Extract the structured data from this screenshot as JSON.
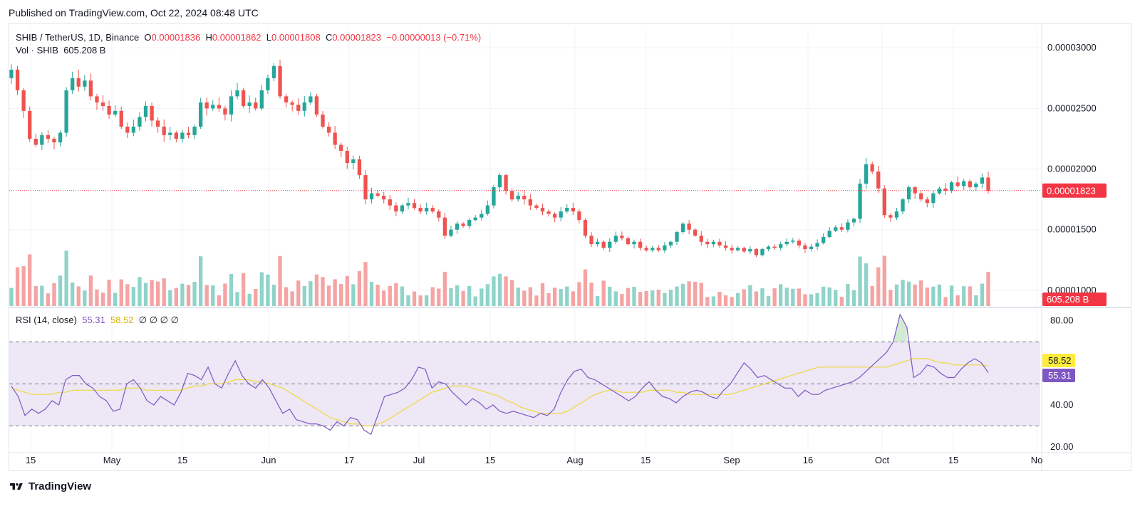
{
  "header": {
    "published": "Published on TradingView.com, Oct 22, 2024 08:48 UTC"
  },
  "legend": {
    "symbol": "SHIB / TetherUS, 1D, Binance",
    "open_label": "O",
    "open": "0.00001836",
    "high_label": "H",
    "high": "0.00001862",
    "low_label": "L",
    "low": "0.00001808",
    "close_label": "C",
    "close": "0.00001823",
    "change": "−0.00000013 (−0.71%)",
    "vol_label": "Vol · SHIB",
    "vol_value": "605.208 B"
  },
  "rsi_legend": {
    "label": "RSI (14, close)",
    "rsi": "55.31",
    "ma": "58.52",
    "extras": "∅  ∅  ∅  ∅"
  },
  "footer": {
    "brand": "TradingView"
  },
  "colors": {
    "up": "#26a69a",
    "down": "#ef5350",
    "vol_up": "#8fd3c9",
    "vol_down": "#f5a3a3",
    "rsi": "#7e57c2",
    "rsi_ma": "#f0d83a",
    "rsi_band": "#ede7f6",
    "price_tag": "#f23645",
    "rsi_tag": "#7e57c2",
    "rsi_ma_tag": "#ffeb3b"
  },
  "chart_data": [
    {
      "type": "candlestick",
      "title": "SHIB / TetherUS, 1D, Binance",
      "x_ticks": [
        "15",
        "May",
        "15",
        "Jun",
        "17",
        "Jul",
        "15",
        "Aug",
        "15",
        "Sep",
        "16",
        "Oct",
        "15",
        "No"
      ],
      "y_ticks": [
        "0.00003000",
        "0.00002500",
        "0.00002000",
        "0.00001500",
        "0.00001000"
      ],
      "ylim": [
        8.7e-06,
        3.16e-05
      ],
      "last_price_label": "0.00001823",
      "last_price": 1.823e-05,
      "volume_label": "605.208 B",
      "close_series": [
        28.2,
        26.5,
        24.8,
        22.5,
        22.0,
        22.8,
        22.5,
        22.2,
        23.0,
        26.5,
        27.5,
        26.8,
        27.3,
        26.0,
        25.5,
        25.2,
        24.5,
        24.8,
        23.5,
        23.0,
        23.5,
        24.3,
        25.2,
        24.0,
        23.5,
        22.8,
        23.0,
        22.5,
        23.0,
        22.8,
        23.5,
        25.5,
        25.0,
        25.3,
        25.0,
        24.5,
        26.0,
        26.5,
        25.2,
        25.5,
        25.0,
        26.5,
        27.5,
        28.5,
        26.0,
        25.5,
        25.3,
        24.8,
        25.5,
        26.0,
        24.5,
        23.5,
        23.0,
        22.0,
        21.5,
        20.5,
        20.8,
        19.5,
        17.5,
        18.0,
        17.8,
        17.5,
        17.0,
        16.5,
        17.0,
        17.2,
        16.8,
        16.5,
        16.8,
        16.5,
        16.0,
        14.5,
        15.0,
        15.5,
        15.3,
        15.8,
        16.0,
        16.3,
        17.0,
        18.5,
        19.5,
        18.2,
        17.5,
        17.8,
        17.5,
        17.0,
        16.8,
        16.5,
        16.3,
        16.0,
        16.5,
        16.8,
        16.5,
        15.8,
        14.5,
        13.8,
        14.0,
        13.5,
        14.0,
        14.5,
        14.3,
        13.8,
        14.0,
        13.5,
        13.3,
        13.5,
        13.3,
        13.7,
        14.0,
        14.8,
        15.5,
        15.0,
        14.5,
        14.0,
        13.8,
        14.0,
        13.7,
        13.5,
        13.3,
        13.5,
        13.2,
        13.4,
        12.9,
        13.4,
        13.6,
        13.5,
        13.8,
        14.0,
        14.1,
        13.7,
        13.4,
        13.6,
        13.9,
        14.4,
        14.9,
        15.2,
        15.0,
        15.6,
        15.9,
        18.8,
        20.4,
        19.8,
        18.4,
        16.2,
        16.0,
        16.5,
        17.5,
        18.5,
        18.0,
        17.5,
        17.2,
        18.0,
        18.4,
        18.2,
        18.9,
        18.6,
        19.0,
        18.5,
        18.8,
        19.3,
        18.2
      ]
    },
    {
      "type": "line",
      "title": "RSI (14, close)",
      "y_ticks": [
        "80.00",
        "40.00",
        "20.00"
      ],
      "ylim": [
        18,
        86
      ],
      "levels": [
        70,
        50,
        30
      ],
      "rsi_value_label": "55.31",
      "ma_value_label": "58.52",
      "series": [
        {
          "name": "RSI",
          "values": [
            49,
            44,
            35,
            38,
            36,
            38,
            42,
            40,
            52,
            54,
            54,
            50,
            48,
            44,
            42,
            37,
            38,
            50,
            52,
            48,
            42,
            40,
            44,
            42,
            40,
            46,
            55,
            54,
            52,
            58,
            50,
            48,
            55,
            61,
            54,
            50,
            48,
            52,
            48,
            42,
            36,
            38,
            33,
            32,
            31,
            31,
            30,
            28,
            32,
            30,
            34,
            33,
            28,
            26,
            35,
            44,
            45,
            46,
            48,
            52,
            58,
            57,
            48,
            51,
            50,
            46,
            43,
            40,
            43,
            41,
            38,
            40,
            37,
            36,
            37,
            36,
            35,
            34,
            36,
            35,
            38,
            46,
            52,
            56,
            57,
            53,
            52,
            50,
            48,
            46,
            44,
            42,
            44,
            48,
            51,
            47,
            44,
            43,
            41,
            44,
            46,
            47,
            46,
            44,
            43,
            47,
            50,
            55,
            60,
            57,
            53,
            54,
            52,
            50,
            48,
            48,
            44,
            47,
            45,
            45,
            47,
            48,
            49,
            50,
            51,
            53,
            56,
            59,
            62,
            65,
            70,
            83,
            77,
            53,
            55,
            59,
            58,
            55,
            53,
            53,
            57,
            60,
            62,
            60,
            55.31
          ]
        },
        {
          "name": "RSI-based MA",
          "values": [
            48,
            47,
            46,
            45,
            45,
            45,
            45,
            46,
            46,
            47,
            47,
            47,
            47,
            47,
            47,
            47,
            47,
            48,
            48,
            48,
            47,
            47,
            47,
            47,
            47,
            47,
            48,
            49,
            49,
            50,
            50,
            50,
            51,
            52,
            52,
            52,
            51,
            51,
            50,
            49,
            48,
            46,
            44,
            42,
            40,
            38,
            36,
            34,
            33,
            32,
            31,
            31,
            30,
            30,
            31,
            32,
            34,
            36,
            38,
            40,
            42,
            44,
            46,
            47,
            48,
            49,
            49,
            49,
            48,
            47,
            46,
            45,
            44,
            42,
            41,
            39,
            38,
            37,
            36,
            36,
            36,
            36,
            37,
            39,
            41,
            43,
            45,
            46,
            47,
            47,
            46,
            46,
            46,
            46,
            47,
            47,
            47,
            47,
            46,
            46,
            45,
            45,
            45,
            45,
            45,
            45,
            45,
            46,
            47,
            48,
            49,
            50,
            51,
            52,
            53,
            54,
            55,
            56,
            57,
            58,
            58,
            58,
            58,
            58,
            58,
            58,
            58,
            58,
            58,
            58,
            59,
            60,
            61,
            62,
            62,
            62,
            61,
            60,
            60,
            59,
            59,
            59,
            59,
            59,
            58.52
          ]
        }
      ]
    }
  ]
}
